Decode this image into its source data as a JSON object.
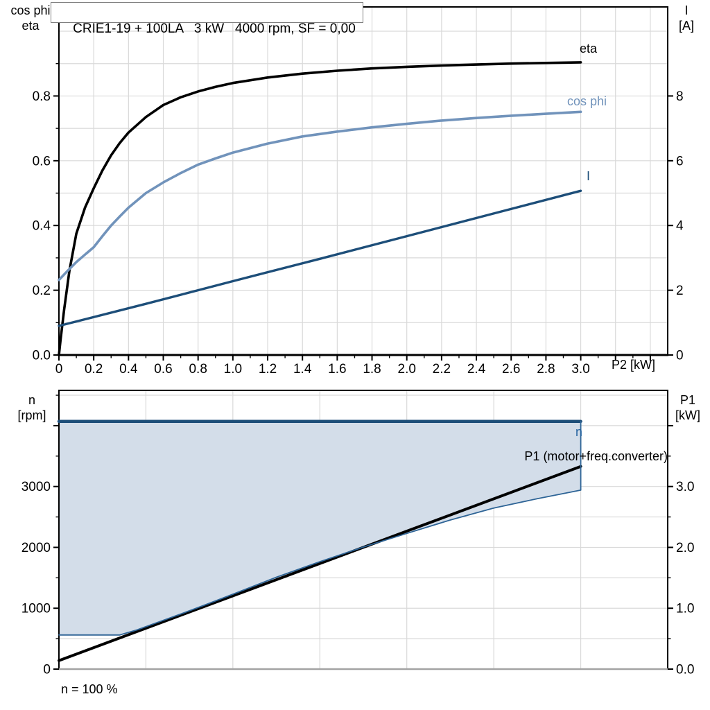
{
  "page": {
    "background": "#ffffff",
    "grid_color": "#d9d9d9",
    "frame_color": "#000000",
    "baseline_color": "#a3a3a3"
  },
  "chart_data": [
    {
      "type": "line",
      "title": "CRIE1-19 + 100LA   3 kW   4000 rpm, SF = 0,00",
      "left_axis_title_lines": [
        "cos phi",
        "eta"
      ],
      "right_axis_title_lines": [
        "I",
        "[A]"
      ],
      "xlabel": "P2 [kW]",
      "xlim": [
        0,
        3.5
      ],
      "ylim_left": [
        0,
        1.075
      ],
      "ylim_right": [
        0,
        10.75
      ],
      "grid": "on",
      "x_ticks": [
        {
          "v": 0,
          "label": "0"
        },
        {
          "v": 0.2,
          "label": "0.2"
        },
        {
          "v": 0.4,
          "label": "0.4"
        },
        {
          "v": 0.6,
          "label": "0.6"
        },
        {
          "v": 0.8,
          "label": "0.8"
        },
        {
          "v": 1.0,
          "label": "1.0"
        },
        {
          "v": 1.2,
          "label": "1.2"
        },
        {
          "v": 1.4,
          "label": "1.4"
        },
        {
          "v": 1.6,
          "label": "1.6"
        },
        {
          "v": 1.8,
          "label": "1.8"
        },
        {
          "v": 2.0,
          "label": "2.0"
        },
        {
          "v": 2.2,
          "label": "2.2"
        },
        {
          "v": 2.4,
          "label": "2.4"
        },
        {
          "v": 2.6,
          "label": "2.6"
        },
        {
          "v": 2.8,
          "label": "2.8"
        },
        {
          "v": 3.0,
          "label": "3.0"
        }
      ],
      "y_left_ticks": [
        {
          "v": 0.0,
          "label": "0.0"
        },
        {
          "v": 0.2,
          "label": "0.2"
        },
        {
          "v": 0.4,
          "label": "0.4"
        },
        {
          "v": 0.6,
          "label": "0.6"
        },
        {
          "v": 0.8,
          "label": "0.8"
        }
      ],
      "y_right_ticks": [
        {
          "v": 0,
          "label": "0"
        },
        {
          "v": 2,
          "label": "2"
        },
        {
          "v": 4,
          "label": "4"
        },
        {
          "v": 6,
          "label": "6"
        },
        {
          "v": 8,
          "label": "8"
        }
      ],
      "series": [
        {
          "name": "eta",
          "axis": "left",
          "color": "#000000",
          "points": [
            [
              0,
              0
            ],
            [
              0.01,
              0.05
            ],
            [
              0.03,
              0.14
            ],
            [
              0.06,
              0.26
            ],
            [
              0.1,
              0.375
            ],
            [
              0.15,
              0.455
            ],
            [
              0.2,
              0.515
            ],
            [
              0.25,
              0.57
            ],
            [
              0.3,
              0.617
            ],
            [
              0.35,
              0.655
            ],
            [
              0.4,
              0.687
            ],
            [
              0.5,
              0.735
            ],
            [
              0.6,
              0.772
            ],
            [
              0.7,
              0.796
            ],
            [
              0.8,
              0.814
            ],
            [
              0.9,
              0.828
            ],
            [
              1.0,
              0.84
            ],
            [
              1.2,
              0.857
            ],
            [
              1.4,
              0.869
            ],
            [
              1.6,
              0.878
            ],
            [
              1.8,
              0.885
            ],
            [
              2.0,
              0.89
            ],
            [
              2.2,
              0.894
            ],
            [
              2.4,
              0.897
            ],
            [
              2.6,
              0.9
            ],
            [
              2.8,
              0.902
            ],
            [
              3.0,
              0.904
            ]
          ]
        },
        {
          "name": "cos phi",
          "axis": "left",
          "color": "#7193bb",
          "points": [
            [
              0,
              0.232
            ],
            [
              0.05,
              0.26
            ],
            [
              0.1,
              0.287
            ],
            [
              0.15,
              0.31
            ],
            [
              0.2,
              0.333
            ],
            [
              0.25,
              0.367
            ],
            [
              0.3,
              0.4
            ],
            [
              0.35,
              0.428
            ],
            [
              0.4,
              0.455
            ],
            [
              0.5,
              0.5
            ],
            [
              0.6,
              0.533
            ],
            [
              0.7,
              0.562
            ],
            [
              0.8,
              0.588
            ],
            [
              0.9,
              0.607
            ],
            [
              1.0,
              0.625
            ],
            [
              1.2,
              0.653
            ],
            [
              1.4,
              0.675
            ],
            [
              1.6,
              0.69
            ],
            [
              1.8,
              0.703
            ],
            [
              2.0,
              0.714
            ],
            [
              2.2,
              0.724
            ],
            [
              2.4,
              0.732
            ],
            [
              2.6,
              0.739
            ],
            [
              2.8,
              0.745
            ],
            [
              3.0,
              0.751
            ]
          ]
        },
        {
          "name": "I",
          "axis": "right",
          "color": "#1d4e79",
          "points": [
            [
              0,
              0.9
            ],
            [
              0.5,
              1.58
            ],
            [
              1.0,
              2.28
            ],
            [
              1.5,
              2.97
            ],
            [
              2.0,
              3.67
            ],
            [
              2.5,
              4.37
            ],
            [
              3.0,
              5.07
            ]
          ]
        }
      ]
    },
    {
      "type": "line+area",
      "left_axis_title_lines": [
        "n",
        "[rpm]"
      ],
      "right_axis_title_lines": [
        "P1",
        "[kW]"
      ],
      "footnote": "n = 100 %",
      "xlim": [
        0,
        3.5
      ],
      "ylim_left": [
        0,
        4580
      ],
      "ylim_right": [
        0,
        4.58
      ],
      "grid": "on",
      "y_left_ticks": [
        {
          "v": 0,
          "label": "0"
        },
        {
          "v": 1000,
          "label": "1000"
        },
        {
          "v": 2000,
          "label": "2000"
        },
        {
          "v": 3000,
          "label": "3000"
        }
      ],
      "y_right_ticks": [
        {
          "v": 0,
          "label": "0.0"
        },
        {
          "v": 1,
          "label": "1.0"
        },
        {
          "v": 2,
          "label": "2.0"
        },
        {
          "v": 3,
          "label": "3.0"
        }
      ],
      "area": {
        "fill": "#d3dde9",
        "upper": [
          [
            0,
            4070
          ],
          [
            3.0,
            4070
          ]
        ],
        "lower": [
          [
            0,
            560
          ],
          [
            0.35,
            560
          ],
          [
            0.45,
            645
          ],
          [
            0.55,
            750
          ],
          [
            0.7,
            905
          ],
          [
            0.85,
            1065
          ],
          [
            1.0,
            1230
          ],
          [
            1.25,
            1510
          ],
          [
            1.5,
            1765
          ],
          [
            1.75,
            2005
          ],
          [
            2.0,
            2230
          ],
          [
            2.25,
            2450
          ],
          [
            2.5,
            2645
          ],
          [
            2.75,
            2800
          ],
          [
            3.0,
            2940
          ]
        ]
      },
      "series": [
        {
          "name": "n",
          "axis": "left",
          "color": "#1d4e79",
          "points": [
            [
              0,
              4070
            ],
            [
              3.0,
              4070
            ]
          ]
        },
        {
          "name": "P1 (motor+freq.converter)",
          "axis": "right",
          "color": "#000000",
          "points": [
            [
              0,
              0.14
            ],
            [
              3.0,
              3.33
            ]
          ]
        },
        {
          "name": "speed range lower boundary",
          "axis": "left",
          "color": "#2e6496",
          "points": [
            [
              0,
              560
            ],
            [
              0.35,
              560
            ],
            [
              0.45,
              645
            ],
            [
              0.55,
              750
            ],
            [
              0.7,
              905
            ],
            [
              0.85,
              1065
            ],
            [
              1.0,
              1230
            ],
            [
              1.25,
              1510
            ],
            [
              1.5,
              1765
            ],
            [
              1.75,
              2005
            ],
            [
              2.0,
              2230
            ],
            [
              2.25,
              2450
            ],
            [
              2.5,
              2645
            ],
            [
              2.75,
              2800
            ],
            [
              3.0,
              2940
            ],
            [
              3.0,
              4070
            ]
          ]
        }
      ],
      "labels": {
        "n_curve": "n",
        "p1_curve": "P1 (motor+freq.converter)"
      }
    }
  ]
}
